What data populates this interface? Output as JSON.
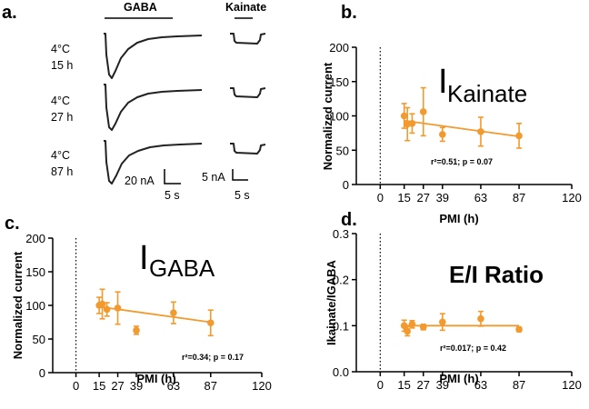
{
  "figure": {
    "panel_a": {
      "label": "a.",
      "gaba_header": "GABA",
      "kainate_header": "Kainate",
      "conditions": [
        {
          "temp": "4°C",
          "time": "15 h"
        },
        {
          "temp": "4°C",
          "time": "27 h"
        },
        {
          "temp": "4°C",
          "time": "87 h"
        }
      ],
      "gaba_scale": {
        "current": "20 nA",
        "time": "5 s"
      },
      "kainate_scale": {
        "current": "5 nA",
        "time": "5 s"
      }
    }
  },
  "colors": {
    "series": "#F29A2E",
    "axis": "#000000"
  },
  "chart_data": [
    {
      "panel": "b.",
      "type": "scatter",
      "title_main": "I",
      "title_sub": "Kainate",
      "xlabel": "PMI (h)",
      "ylabel": "Normalized current",
      "xlim": [
        -15,
        120
      ],
      "ylim": [
        0,
        200
      ],
      "xticks": [
        0,
        15,
        27,
        39,
        63,
        87,
        120
      ],
      "yticks": [
        0,
        50,
        100,
        150,
        200
      ],
      "ytick_labels": [
        "0",
        "50",
        "100",
        "150",
        "200"
      ],
      "x": [
        15,
        17,
        20,
        27,
        39,
        63,
        87
      ],
      "y": [
        100,
        88,
        89,
        106,
        73,
        77,
        71
      ],
      "err": [
        18,
        24,
        14,
        35,
        10,
        21,
        18
      ],
      "fit": {
        "x": [
          15,
          87
        ],
        "y": [
          93,
          70
        ]
      },
      "annotation": "r²=0.51; p = 0.07",
      "dotted_line_x": 0
    },
    {
      "panel": "c.",
      "type": "scatter",
      "title_main": "I",
      "title_sub": "GABA",
      "xlabel": "PMI (h)",
      "ylabel": "Normalized current",
      "xlim": [
        -15,
        120
      ],
      "ylim": [
        0,
        200
      ],
      "xticks": [
        0,
        15,
        27,
        39,
        63,
        87,
        120
      ],
      "yticks": [
        0,
        50,
        100,
        150,
        200
      ],
      "ytick_labels": [
        "0",
        "50",
        "100",
        "150",
        "200"
      ],
      "x": [
        15,
        17,
        20,
        27,
        39,
        63,
        87
      ],
      "y": [
        100,
        102,
        94,
        96,
        63,
        89,
        74
      ],
      "err": [
        12,
        22,
        10,
        24,
        6,
        16,
        19
      ],
      "fit": {
        "x": [
          15,
          87
        ],
        "y": [
          98,
          75
        ]
      },
      "annotation": "r²=0.34; p = 0.17",
      "dotted_line_x": 0
    },
    {
      "panel": "d.",
      "type": "scatter",
      "title_main": "E/I Ratio",
      "title_sub": "",
      "xlabel": "PMI (h)",
      "ylabel": "Ikainate/IGABA",
      "xlim": [
        -15,
        120
      ],
      "ylim": [
        0,
        0.3
      ],
      "xticks": [
        0,
        15,
        27,
        39,
        63,
        87,
        120
      ],
      "yticks": [
        0,
        0.1,
        0.2,
        0.3
      ],
      "ytick_labels": [
        "0.0",
        "0.1",
        "0.2",
        "0.3"
      ],
      "x": [
        15,
        17,
        20,
        27,
        39,
        63,
        87
      ],
      "y": [
        0.1,
        0.088,
        0.103,
        0.097,
        0.108,
        0.115,
        0.092
      ],
      "err": [
        0.012,
        0.01,
        0.008,
        0.006,
        0.018,
        0.016,
        0.005
      ],
      "fit": {
        "x": [
          15,
          87
        ],
        "y": [
          0.1,
          0.1
        ]
      },
      "annotation": "r²=0.017; p = 0.42",
      "dotted_line_x": 0
    }
  ]
}
